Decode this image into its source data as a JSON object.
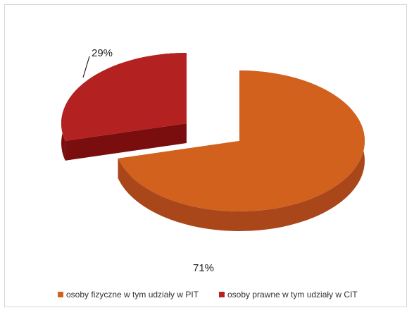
{
  "chart_data": {
    "type": "pie",
    "style": "3d-exploded",
    "categories": [
      "osoby fizyczne w tym udziały w PIT",
      "osoby prawne w tym udziały w CIT"
    ],
    "values": [
      71,
      29
    ],
    "data_labels": [
      "71%",
      "29%"
    ],
    "colors": [
      "#d2611e",
      "#b42121"
    ],
    "side_colors": [
      "#a9471a",
      "#7a0e0e"
    ],
    "legend": {
      "placement": "bottom"
    }
  }
}
